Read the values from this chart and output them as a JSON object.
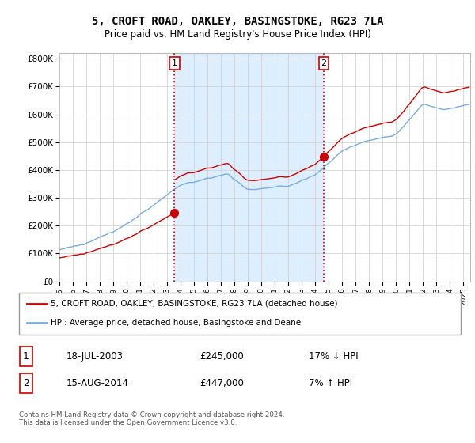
{
  "title": "5, CROFT ROAD, OAKLEY, BASINGSTOKE, RG23 7LA",
  "subtitle": "Price paid vs. HM Land Registry's House Price Index (HPI)",
  "ylabel_ticks": [
    "£0",
    "£100K",
    "£200K",
    "£300K",
    "£400K",
    "£500K",
    "£600K",
    "£700K",
    "£800K"
  ],
  "ytick_vals": [
    0,
    100000,
    200000,
    300000,
    400000,
    500000,
    600000,
    700000,
    800000
  ],
  "ylim": [
    0,
    820000
  ],
  "xlim_start": 1995.0,
  "xlim_end": 2025.5,
  "sale1_date": 2003.54,
  "sale1_price": 245000,
  "sale1_label": "1",
  "sale2_date": 2014.62,
  "sale2_price": 447000,
  "sale2_label": "2",
  "red_line_color": "#cc0000",
  "blue_line_color": "#7aace0",
  "shade_color": "#ddeeff",
  "dashed_line_color": "#cc0000",
  "legend_label1": "5, CROFT ROAD, OAKLEY, BASINGSTOKE, RG23 7LA (detached house)",
  "legend_label2": "HPI: Average price, detached house, Basingstoke and Deane",
  "table_row1_label": "1",
  "table_row1_date": "18-JUL-2003",
  "table_row1_price": "£245,000",
  "table_row1_hpi": "17% ↓ HPI",
  "table_row2_label": "2",
  "table_row2_date": "15-AUG-2014",
  "table_row2_price": "£447,000",
  "table_row2_hpi": "7% ↑ HPI",
  "footnote": "Contains HM Land Registry data © Crown copyright and database right 2024.\nThis data is licensed under the Open Government Licence v3.0.",
  "background_color": "#ffffff",
  "grid_color": "#cccccc"
}
